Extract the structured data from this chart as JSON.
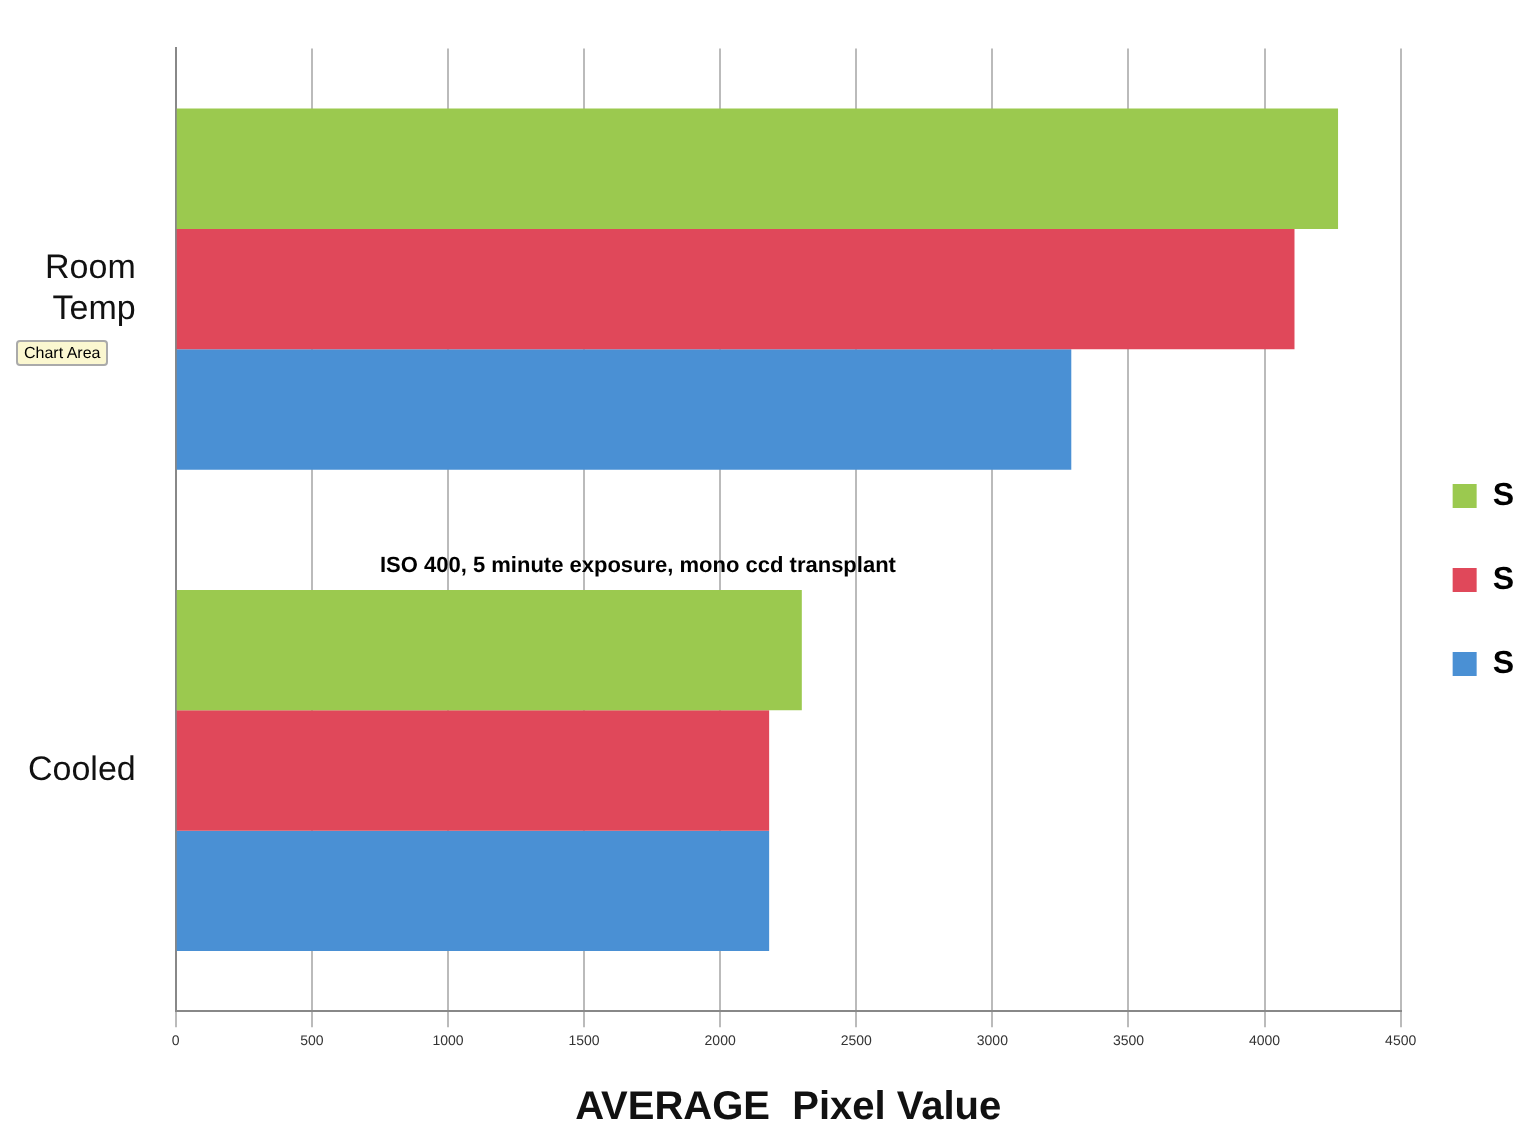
{
  "chart_data": {
    "type": "bar",
    "orientation": "horizontal",
    "categories": [
      "Room Temp",
      "Cooled"
    ],
    "series": [
      {
        "name": "S",
        "color": "#9bc94f",
        "values": [
          4270,
          2300
        ]
      },
      {
        "name": "S",
        "color": "#e0485a",
        "values": [
          4110,
          2180
        ]
      },
      {
        "name": "S",
        "color": "#4a90d4",
        "values": [
          3290,
          2180
        ]
      }
    ],
    "xlabel": "AVERAGE  Pixel Value",
    "xlim": [
      0,
      4500
    ],
    "xticks": [
      0,
      500,
      1000,
      1500,
      2000,
      2500,
      3000,
      3500,
      4000,
      4500
    ],
    "grid": "x",
    "legend": "right",
    "annotations": [
      "ISO 400, 5 minute exposure, mono ccd transplant",
      "Chart Area"
    ]
  }
}
